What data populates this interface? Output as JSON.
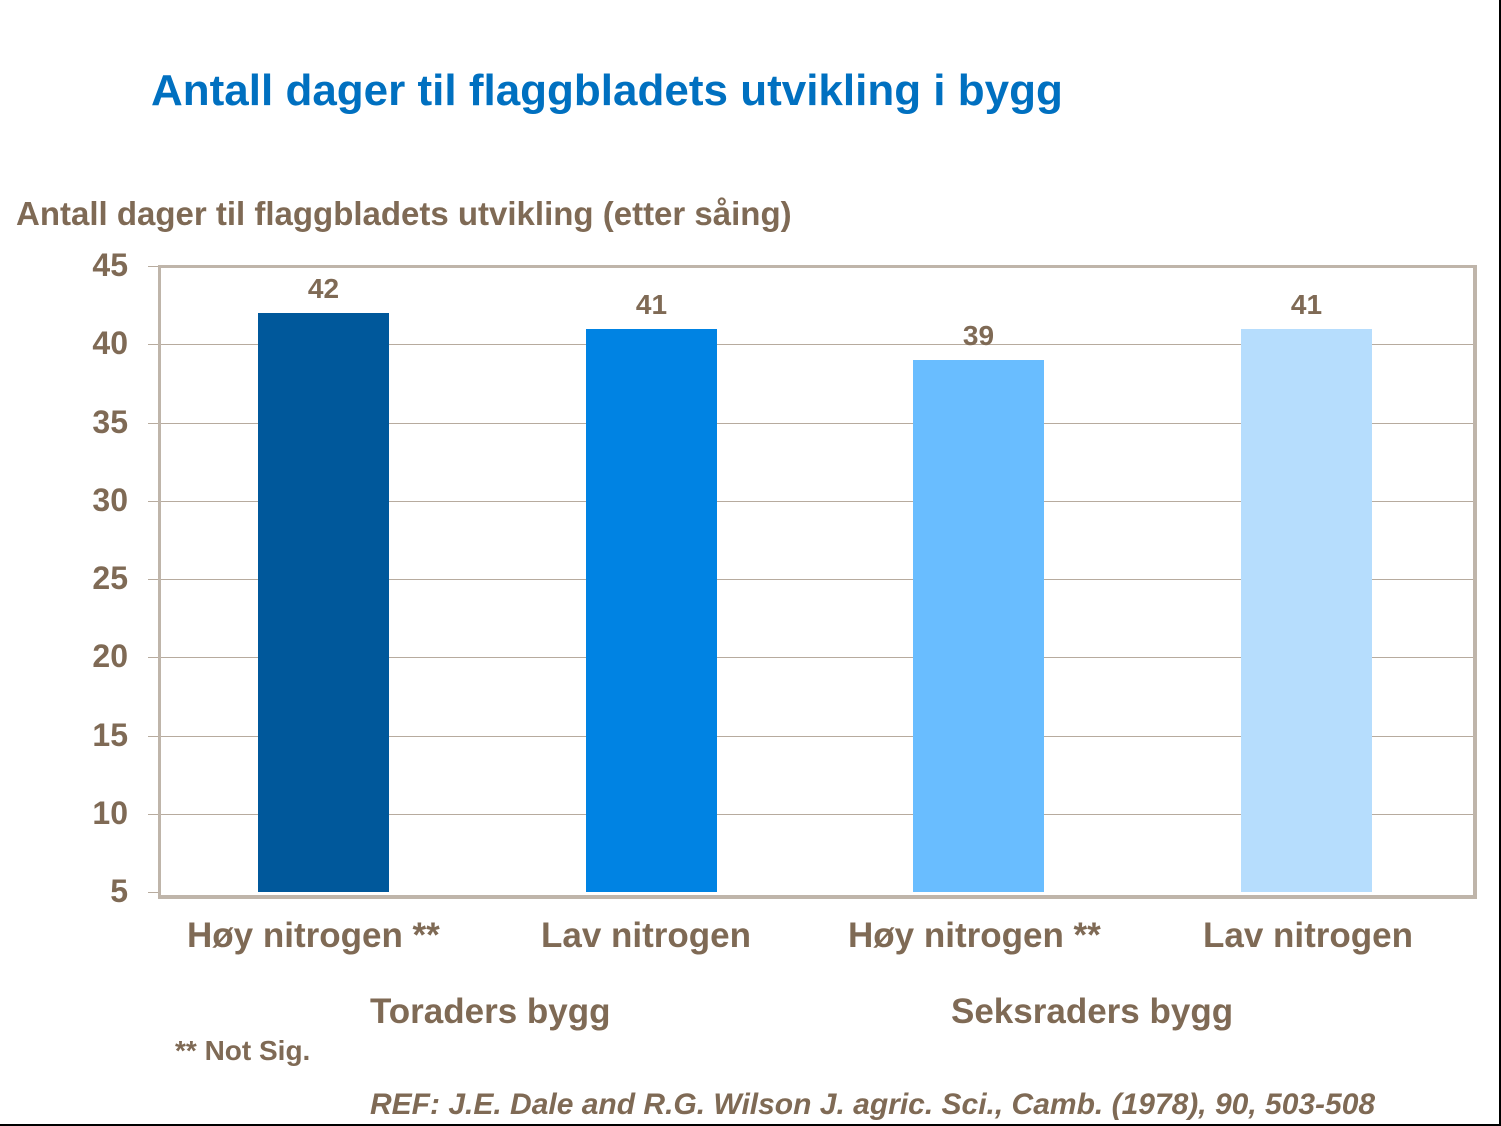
{
  "slide": {
    "title": "Antall dager til flaggbladets utvikling i bygg",
    "note": "** Not Sig.",
    "reference": "REF: J.E. Dale and R.G. Wilson J. agric. Sci., Camb. (1978), 90, 503-508"
  },
  "chart_data": {
    "type": "bar",
    "title": "Antall dager til flaggbladets utvikling i bygg",
    "ylabel": "Antall dager til flaggbladets utvikling (etter såing)",
    "xlabel": "",
    "ylim": [
      5,
      45
    ],
    "yticks": [
      "45",
      "40",
      "35",
      "30",
      "25",
      "20",
      "15",
      "10",
      "5"
    ],
    "grid": true,
    "legend": null,
    "categories": [
      "Høy nitrogen  **",
      "Lav nitrogen",
      "Høy nitrogen **",
      "Lav nitrogen"
    ],
    "groups": [
      {
        "label": "Toraders bygg",
        "categories": [
          0,
          1
        ]
      },
      {
        "label": "Seksraders bygg",
        "categories": [
          2,
          3
        ]
      }
    ],
    "values": [
      42,
      41,
      39,
      41
    ],
    "value_labels": [
      "42",
      "41",
      "39",
      "41"
    ],
    "colors": [
      "#00589b",
      "#0083e3",
      "#69bdff",
      "#b6ddfd"
    ],
    "annotations": [
      "** Not Sig."
    ]
  }
}
